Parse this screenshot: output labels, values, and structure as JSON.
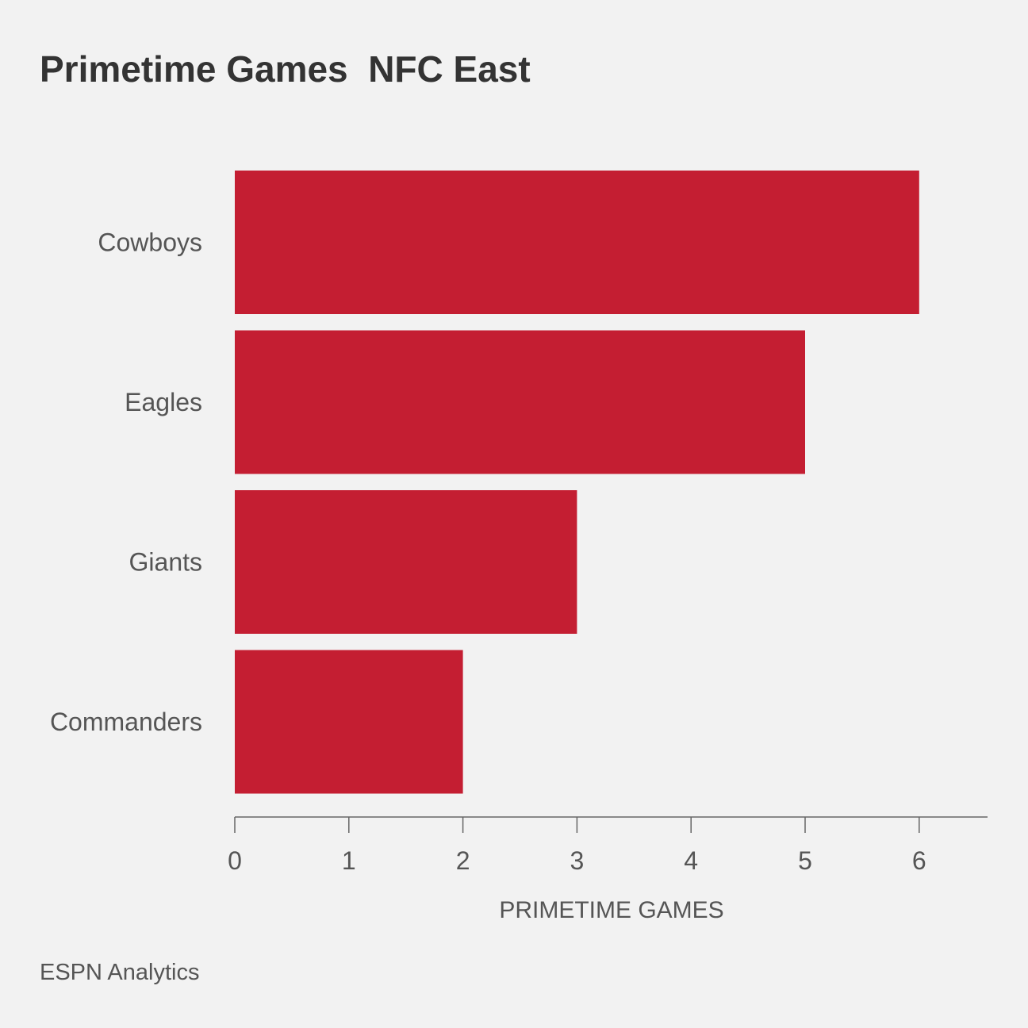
{
  "title": "Primetime Games  NFC East",
  "footer": "ESPN Analytics",
  "colors": {
    "background": "#f2f2f2",
    "bar": "#c41e32",
    "axis": "#666666",
    "text": "#555555"
  },
  "chart_data": {
    "type": "bar",
    "orientation": "horizontal",
    "categories": [
      "Cowboys",
      "Eagles",
      "Giants",
      "Commanders"
    ],
    "values": [
      6,
      5,
      3,
      2
    ],
    "xlabel": "PRIMETIME GAMES",
    "ylabel": "",
    "xlim": [
      0,
      6.6
    ],
    "xticks": [
      0,
      1,
      2,
      3,
      4,
      5,
      6
    ],
    "grid": false,
    "legend": "none"
  }
}
